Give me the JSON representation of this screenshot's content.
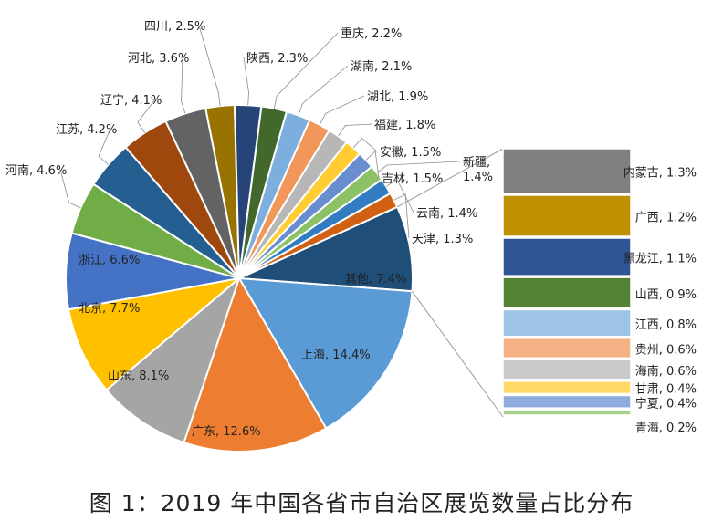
{
  "chart_data": {
    "type": "pie",
    "title": "图 1：2019 年中国各省市自治区展览数量占比分布",
    "main_pie": [
      {
        "name": "其他",
        "value": 7.4,
        "label": "其他, 7.4%",
        "color": "#1f4e79"
      },
      {
        "name": "上海",
        "value": 14.4,
        "label": "上海, 14.4%",
        "color": "#5b9bd5"
      },
      {
        "name": "广东",
        "value": 12.6,
        "label": "广东, 12.6%",
        "color": "#ed7d31"
      },
      {
        "name": "山东",
        "value": 8.1,
        "label": "山东, 8.1%",
        "color": "#a5a5a5"
      },
      {
        "name": "北京",
        "value": 7.7,
        "label": "北京, 7.7%",
        "color": "#ffc000"
      },
      {
        "name": "浙江",
        "value": 6.6,
        "label": "浙江, 6.6%",
        "color": "#4472c4"
      },
      {
        "name": "河南",
        "value": 4.6,
        "label": "河南, 4.6%",
        "color": "#70ad47"
      },
      {
        "name": "江苏",
        "value": 4.2,
        "label": "江苏, 4.2%",
        "color": "#255e91"
      },
      {
        "name": "辽宁",
        "value": 4.1,
        "label": "辽宁, 4.1%",
        "color": "#9e480e"
      },
      {
        "name": "河北",
        "value": 3.6,
        "label": "河北, 3.6%",
        "color": "#636363"
      },
      {
        "name": "四川",
        "value": 2.5,
        "label": "四川, 2.5%",
        "color": "#997300"
      },
      {
        "name": "陕西",
        "value": 2.3,
        "label": "陕西, 2.3%",
        "color": "#264478"
      },
      {
        "name": "重庆",
        "value": 2.2,
        "label": "重庆, 2.2%",
        "color": "#43682b"
      },
      {
        "name": "湖南",
        "value": 2.1,
        "label": "湖南, 2.1%",
        "color": "#7cafdd"
      },
      {
        "name": "湖北",
        "value": 1.9,
        "label": "湖北, 1.9%",
        "color": "#f1975a"
      },
      {
        "name": "福建",
        "value": 1.8,
        "label": "福建, 1.8%",
        "color": "#b7b7b7"
      },
      {
        "name": "安徽",
        "value": 1.5,
        "label": "安徽, 1.5%",
        "color": "#ffcd33"
      },
      {
        "name": "吉林",
        "value": 1.5,
        "label": "吉林, 1.5%",
        "color": "#698ed0"
      },
      {
        "name": "新疆",
        "value": 1.4,
        "label": "新疆,\n1.4%",
        "color": "#8cc168"
      },
      {
        "name": "云南",
        "value": 1.4,
        "label": "云南, 1.4%",
        "color": "#327dc2"
      },
      {
        "name": "天津",
        "value": 1.3,
        "label": "天津, 1.3%",
        "color": "#d26012"
      }
    ],
    "other_breakdown": [
      {
        "name": "内蒙古",
        "value": 1.3,
        "label": "内蒙古, 1.3%",
        "color": "#7f7f7f"
      },
      {
        "name": "广西",
        "value": 1.2,
        "label": "广西, 1.2%",
        "color": "#bf9000"
      },
      {
        "name": "黑龙江",
        "value": 1.1,
        "label": "黑龙江, 1.1%",
        "color": "#2f5597"
      },
      {
        "name": "山西",
        "value": 0.9,
        "label": "山西, 0.9%",
        "color": "#548235"
      },
      {
        "name": "江西",
        "value": 0.8,
        "label": "江西, 0.8%",
        "color": "#9dc3e6"
      },
      {
        "name": "贵州",
        "value": 0.6,
        "label": "贵州, 0.6%",
        "color": "#f4b183"
      },
      {
        "name": "海南",
        "value": 0.6,
        "label": "海南, 0.6%",
        "color": "#c9c9c9"
      },
      {
        "name": "甘肃",
        "value": 0.4,
        "label": "甘肃, 0.4%",
        "color": "#ffd966"
      },
      {
        "name": "宁夏",
        "value": 0.4,
        "label": "宁夏, 0.4%",
        "color": "#8faadc"
      },
      {
        "name": "青海",
        "value": 0.2,
        "label": "青海, 0.2%",
        "color": "#a9d18e"
      }
    ]
  }
}
